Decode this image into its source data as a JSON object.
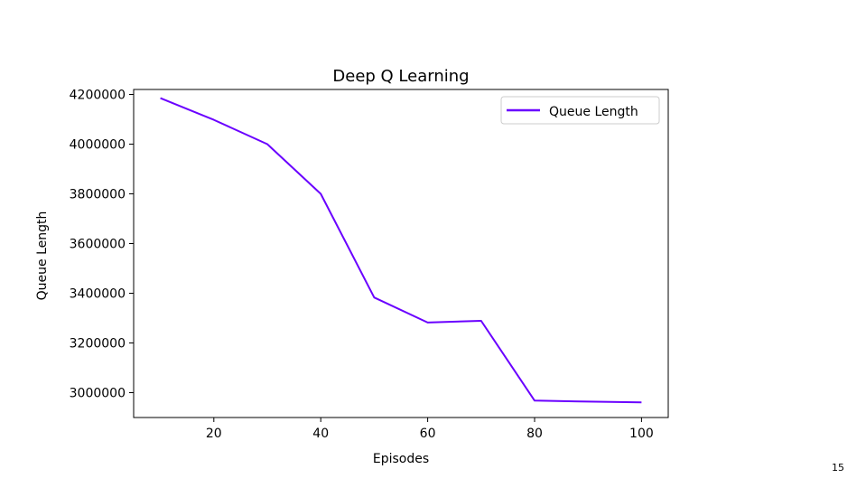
{
  "page": {
    "number": "15"
  },
  "chart_data": {
    "type": "line",
    "title": "Deep Q Learning",
    "xlabel": "Episodes",
    "ylabel": "Queue Length",
    "xlim": [
      5,
      105
    ],
    "ylim": [
      2900000,
      4220000
    ],
    "xticks": [
      20,
      40,
      60,
      80,
      100
    ],
    "yticks": [
      3000000,
      3200000,
      3400000,
      3600000,
      3800000,
      4000000,
      4200000
    ],
    "grid": false,
    "legend": "top-right",
    "series": [
      {
        "name": "Queue Length",
        "color": "#6a00ff",
        "x": [
          10,
          20,
          30,
          40,
          50,
          60,
          70,
          80,
          90,
          100
        ],
        "y": [
          4185000,
          4098000,
          4000000,
          3800000,
          3383000,
          3282000,
          3289000,
          2968000,
          2964000,
          2961000
        ]
      }
    ]
  }
}
